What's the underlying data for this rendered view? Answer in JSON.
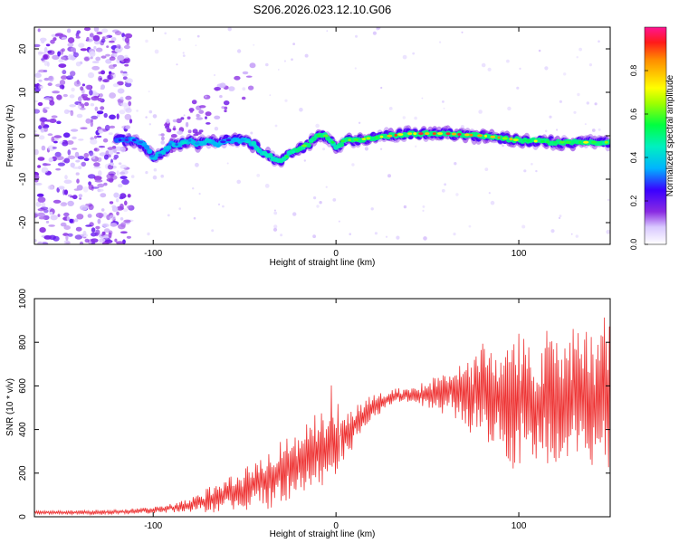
{
  "title": "S206.2026.023.12.10.G06",
  "chart_data": [
    {
      "type": "heatmap",
      "xlabel": "Height of straight line (km)",
      "ylabel": "Frequency (Hz)",
      "xlim": [
        -165,
        150
      ],
      "ylim": [
        -25,
        25
      ],
      "xticks": [
        -100,
        0,
        100
      ],
      "yticks": [
        -20,
        -10,
        0,
        10,
        20
      ],
      "colorbar": {
        "label": "Normalized spectral amplitude",
        "range": [
          0,
          1
        ],
        "ticks": [
          0.0,
          0.2,
          0.4,
          0.6,
          0.8
        ]
      },
      "noise_region_x": [
        -165,
        -118
      ],
      "ridge": {
        "x": [
          -120,
          -110,
          -105,
          -100,
          -95,
          -90,
          -85,
          -80,
          -75,
          -70,
          -65,
          -60,
          -55,
          -50,
          -45,
          -40,
          -35,
          -30,
          -25,
          -20,
          -15,
          -10,
          -5,
          0,
          5,
          10,
          20,
          30,
          40,
          60,
          80,
          100,
          120,
          140,
          150
        ],
        "freq": [
          -1,
          -1,
          -2,
          -5,
          -4,
          -2,
          -2,
          -1,
          -2,
          -1,
          -2,
          -1,
          -1,
          -1,
          -2,
          -4,
          -5,
          -6,
          -4,
          -3,
          -2,
          0,
          0,
          -3,
          -1,
          -1,
          -0.5,
          0,
          0.5,
          0.5,
          0,
          -1,
          -1.5,
          -1.5,
          -1.5
        ],
        "amp": [
          0.25,
          0.3,
          0.3,
          0.4,
          0.35,
          0.35,
          0.4,
          0.4,
          0.35,
          0.4,
          0.35,
          0.3,
          0.35,
          0.35,
          0.45,
          0.5,
          0.5,
          0.5,
          0.55,
          0.6,
          0.6,
          0.65,
          0.6,
          0.55,
          0.6,
          0.6,
          0.7,
          0.8,
          0.95,
          0.95,
          0.85,
          0.7,
          0.7,
          0.65,
          0.6
        ]
      }
    },
    {
      "type": "line",
      "xlabel": "Height of straight line (km)",
      "ylabel": "SNR (10 * v/v)",
      "xlim": [
        -165,
        150
      ],
      "ylim": [
        0,
        1000
      ],
      "xticks": [
        -100,
        0,
        100
      ],
      "yticks": [
        0,
        200,
        400,
        600,
        800,
        1000
      ],
      "color": "#ee3333",
      "series": [
        {
          "name": "SNR",
          "x": [
            -165,
            -150,
            -130,
            -110,
            -100,
            -90,
            -80,
            -70,
            -60,
            -50,
            -40,
            -30,
            -20,
            -10,
            0,
            10,
            20,
            30,
            40,
            50,
            60,
            70,
            80,
            90,
            100,
            110,
            120,
            130,
            140,
            150
          ],
          "mean": [
            20,
            20,
            20,
            25,
            30,
            40,
            55,
            75,
            100,
            130,
            160,
            200,
            250,
            300,
            330,
            420,
            500,
            550,
            560,
            560,
            580,
            570,
            560,
            540,
            520,
            530,
            540,
            560,
            560,
            560
          ],
          "spread": [
            8,
            8,
            10,
            12,
            15,
            20,
            30,
            50,
            70,
            90,
            110,
            130,
            150,
            150,
            120,
            80,
            50,
            30,
            30,
            60,
            100,
            150,
            200,
            260,
            300,
            300,
            300,
            300,
            320,
            320
          ]
        }
      ]
    }
  ]
}
